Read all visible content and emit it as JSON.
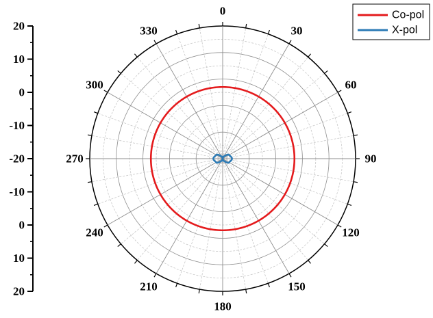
{
  "chart_data": {
    "type": "polar-line",
    "angle_labels": [
      "0",
      "30",
      "60",
      "90",
      "120",
      "150",
      "180",
      "210",
      "240",
      "270",
      "300",
      "330"
    ],
    "radial_axis_labels": [
      "20",
      "10",
      "0",
      "-10",
      "-20",
      "-10",
      "0",
      "10",
      "20"
    ],
    "rlim": [
      -30,
      20
    ],
    "rings_db": [
      -20,
      -10,
      0,
      10,
      20
    ],
    "grid": true,
    "legend_position": "top-right",
    "series": [
      {
        "name": "Co-pol",
        "color": "#e41a1c",
        "shape": "near-omnidirectional circle",
        "theta_deg": [
          0,
          30,
          60,
          90,
          120,
          150,
          180,
          210,
          240,
          270,
          300,
          330
        ],
        "r_db": [
          -3,
          -3,
          -3,
          -3,
          -3,
          -3,
          -3,
          -3,
          -3,
          -3,
          -3,
          -3
        ]
      },
      {
        "name": "X-pol",
        "color": "#2c7bb6",
        "shape": "figure-eight (null at 0/180)",
        "theta_deg": [
          0,
          30,
          60,
          90,
          120,
          150,
          180,
          210,
          240,
          270,
          300,
          330
        ],
        "r_db": [
          -30,
          -29,
          -27.2,
          -26.5,
          -27.2,
          -29,
          -30,
          -29,
          -27.2,
          -26.5,
          -27.2,
          -29
        ]
      }
    ]
  }
}
